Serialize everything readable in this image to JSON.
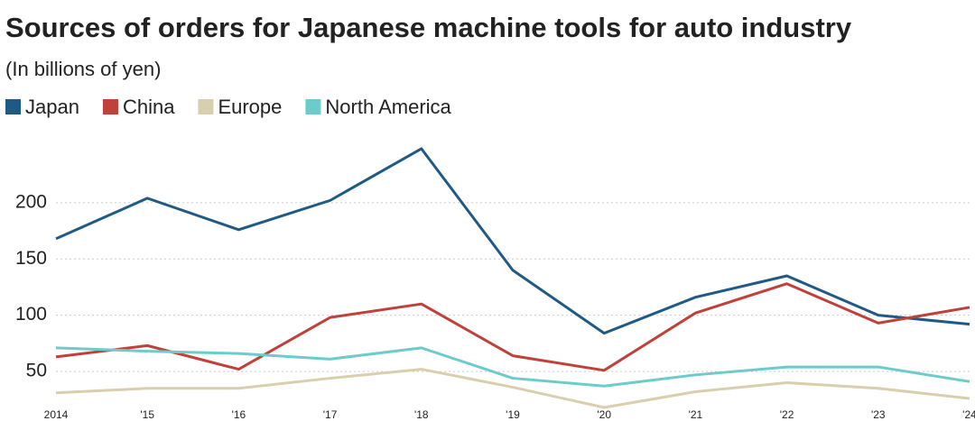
{
  "chart_data": {
    "type": "line",
    "title": "Sources of orders for Japanese machine tools for auto industry",
    "subtitle": "(In billions of yen)",
    "categories": [
      "2014",
      "'15",
      "'16",
      "'17",
      "'18",
      "'19",
      "'20",
      "'21",
      "'22",
      "'23",
      "'24"
    ],
    "series": [
      {
        "name": "Japan",
        "color": "#1f5a85",
        "values": [
          168,
          204,
          176,
          202,
          248,
          140,
          84,
          116,
          135,
          100,
          92
        ]
      },
      {
        "name": "China",
        "color": "#c0403a",
        "values": [
          63,
          73,
          52,
          98,
          110,
          64,
          51,
          102,
          128,
          93,
          107
        ]
      },
      {
        "name": "Europe",
        "color": "#d8cfae",
        "values": [
          31,
          35,
          35,
          44,
          52,
          36,
          18,
          32,
          40,
          35,
          26
        ]
      },
      {
        "name": "North America",
        "color": "#6ccccc",
        "values": [
          71,
          68,
          66,
          61,
          71,
          44,
          37,
          47,
          54,
          54,
          41
        ]
      }
    ],
    "ylim": [
      15,
      260
    ],
    "yticks": [
      50,
      100,
      150,
      200
    ],
    "grid": true
  }
}
